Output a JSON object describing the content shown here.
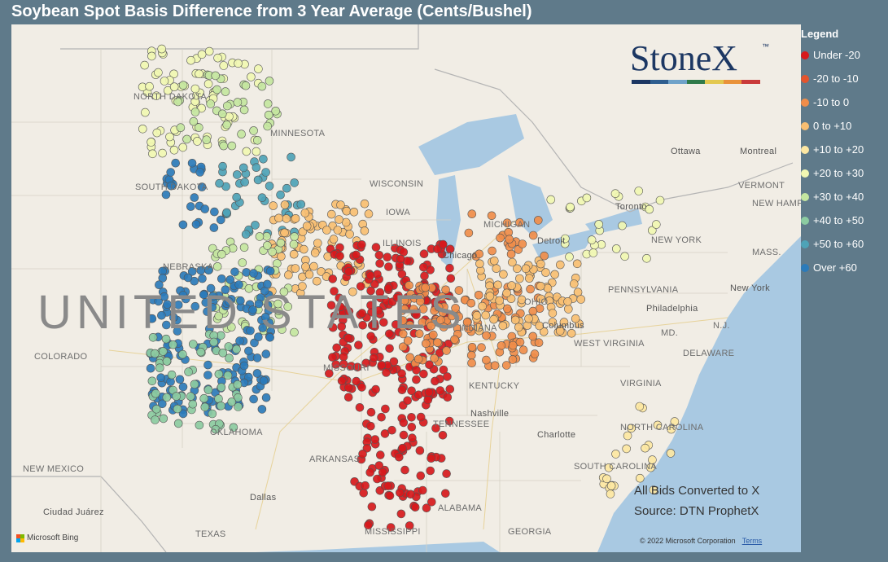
{
  "title": "Soybean Spot Basis Difference from 3 Year Average (Cents/Bushel)",
  "logo": {
    "text": "StoneX",
    "tm": "™",
    "bar_colors": [
      "#1c3763",
      "#2f5e8f",
      "#6fa2c9",
      "#2f7a4a",
      "#e3c84f",
      "#e9923a",
      "#c93a3a"
    ]
  },
  "legend": {
    "title": "Legend",
    "items": [
      {
        "label": "Under -20",
        "color": "#d7191c"
      },
      {
        "label": "-20 to -10",
        "color": "#e4542d"
      },
      {
        "label": "-10 to 0",
        "color": "#f08d4a"
      },
      {
        "label": "0 to +10",
        "color": "#f9bf72"
      },
      {
        "label": "+10 to +20",
        "color": "#fde7a2"
      },
      {
        "label": "+20 to +30",
        "color": "#f1f7b2"
      },
      {
        "label": "+30 to +40",
        "color": "#c4e6a0"
      },
      {
        "label": "+40 to +50",
        "color": "#8ccba1"
      },
      {
        "label": "+50 to +60",
        "color": "#4ea3b7"
      },
      {
        "label": "Over +60",
        "color": "#2b7bba"
      }
    ]
  },
  "map_labels": {
    "states": [
      "NORTH DAKOTA",
      "MINNESOTA",
      "SOUTH DAKOTA",
      "WISCONSIN",
      "NEBRASKA",
      "IOWA",
      "COLORADO",
      "MISSOURI",
      "KENTUCKY",
      "TENNESSEE",
      "OKLAHOMA",
      "ARKANSAS",
      "NEW MEXICO",
      "TEXAS",
      "MISSISSIPPI",
      "ALABAMA",
      "GEORGIA",
      "SOUTH CAROLINA",
      "NORTH CAROLINA",
      "VIRGINIA",
      "WEST VIRGINIA",
      "PENNSYLVANIA",
      "NEW YORK",
      "VERMONT",
      "NEW HAMPSHIRE",
      "MASS.",
      "N.J.",
      "MD.",
      "DELAWARE",
      "ILLINOIS",
      "INDIANA",
      "MICHIGAN",
      "OHIO"
    ],
    "cities": [
      "Ottawa",
      "Montreal",
      "Toronto",
      "Chicago",
      "Detroit",
      "Columbus",
      "Philadelphia",
      "New York",
      "Nashville",
      "Charlotte",
      "Dallas",
      "Ciudad Juárez"
    ],
    "country": "UNITED STATES"
  },
  "notes": {
    "line1": "All Bids Converted to X",
    "line2": "Source: DTN ProphetX"
  },
  "attribution": {
    "bing": "Microsoft Bing",
    "copyright": "© 2022 Microsoft Corporation",
    "terms": "Terms"
  },
  "clusters": [
    {
      "region": "northern-plains",
      "category": "+20 to +30",
      "count": 80
    },
    {
      "region": "north-dakota-east",
      "category": "+30 to +40",
      "count": 40
    },
    {
      "region": "minnesota-west",
      "category": "+50 to +60",
      "count": 40
    },
    {
      "region": "south-dakota-east",
      "category": "Over +60",
      "count": 25
    },
    {
      "region": "iowa-minnesota",
      "category": "0 to +10",
      "count": 90
    },
    {
      "region": "iowa-south",
      "category": "+30 to +40",
      "count": 60
    },
    {
      "region": "nebraska-kansas",
      "category": "Over +60",
      "count": 170
    },
    {
      "region": "kansas-west",
      "category": "+40 to +50",
      "count": 70
    },
    {
      "region": "illinois",
      "category": "Under -20",
      "count": 200
    },
    {
      "region": "indiana",
      "category": "-10 to 0",
      "count": 130
    },
    {
      "region": "ohio",
      "category": "0 to +10",
      "count": 90
    },
    {
      "region": "missouri-bootheel",
      "category": "Under -20",
      "count": 70
    },
    {
      "region": "tennessee-mississippi",
      "category": "Under -20",
      "count": 25
    },
    {
      "region": "ontario",
      "category": "+20 to +30",
      "count": 28
    },
    {
      "region": "michigan",
      "category": "-10 to 0",
      "count": 22
    },
    {
      "region": "atlantic",
      "category": "+10 to +20",
      "count": 25
    }
  ]
}
